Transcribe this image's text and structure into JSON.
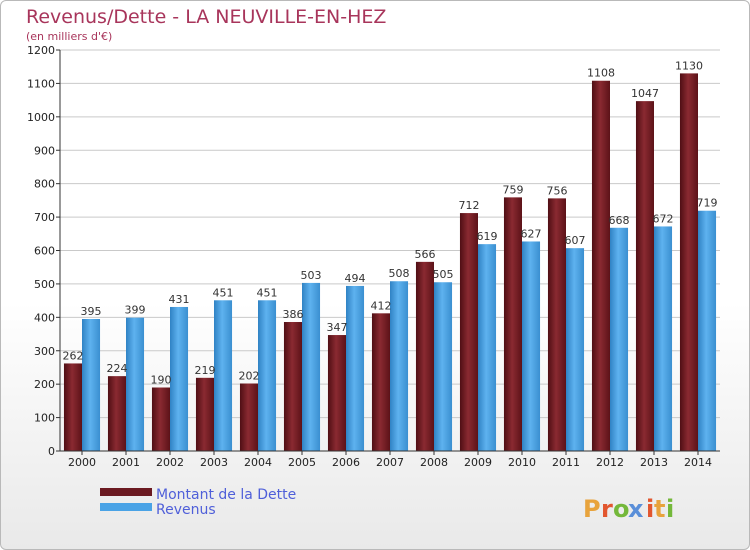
{
  "chart_data": {
    "type": "bar",
    "title": "Revenus/Dette - LA NEUVILLE-EN-HEZ",
    "subtitle": "(en milliers d'€)",
    "categories": [
      "2000",
      "2001",
      "2002",
      "2003",
      "2004",
      "2005",
      "2006",
      "2007",
      "2008",
      "2009",
      "2010",
      "2011",
      "2012",
      "2013",
      "2014"
    ],
    "series": [
      {
        "name": "Montant de la Dette",
        "color": "#7a1f27",
        "values": [
          262,
          224,
          190,
          219,
          202,
          386,
          347,
          412,
          566,
          712,
          759,
          756,
          1108,
          1047,
          1130
        ],
        "labels": [
          "262",
          "224",
          "190",
          "219",
          "202",
          "386",
          "347",
          "412",
          "566",
          "712",
          "759",
          "756",
          "1108",
          "1047",
          "1130"
        ]
      },
      {
        "name": "Revenus",
        "color": "#4aa3e6",
        "values": [
          395,
          399,
          431,
          451,
          451,
          503,
          494,
          508,
          505,
          619,
          627,
          607,
          668,
          672,
          719
        ],
        "labels": [
          "395",
          "399",
          "431",
          "451",
          "451",
          "503",
          "494",
          "508",
          "505",
          "619",
          "627",
          "607",
          "668",
          "672",
          "719"
        ]
      }
    ],
    "ylim": [
      0,
      1200
    ],
    "yticks": [
      "0",
      "100",
      "200",
      "300",
      "400",
      "500",
      "600",
      "700",
      "800",
      "900",
      "1000",
      "1100",
      "1200"
    ],
    "grid": true,
    "legend_position": "bottom-left"
  },
  "brand": {
    "letters": [
      "P",
      "r",
      "o",
      "x",
      "i",
      "t",
      "i"
    ],
    "colors": [
      "#e8a33c",
      "#e2562f",
      "#74b83a",
      "#5a8fd9",
      "#e2562f",
      "#e8a33c",
      "#74b83a"
    ]
  }
}
